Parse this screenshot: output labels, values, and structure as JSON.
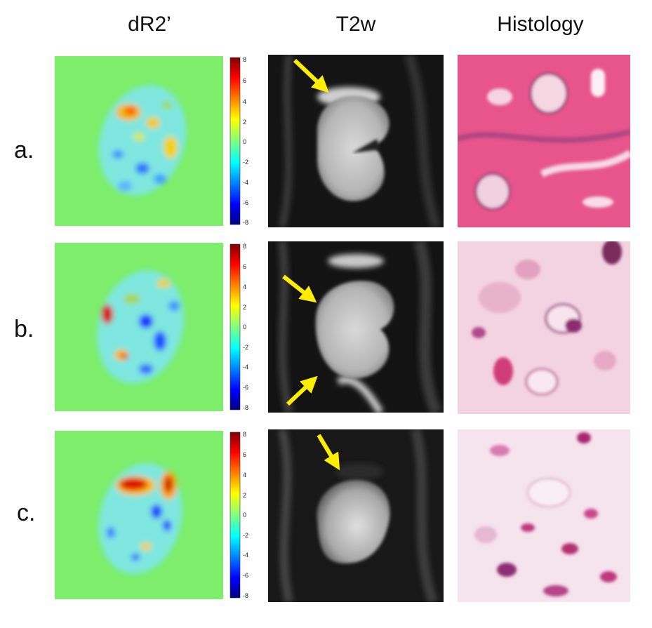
{
  "columns": [
    "dR2’",
    "T2w",
    "Histology"
  ],
  "rows": [
    {
      "label": "a."
    },
    {
      "label": "b."
    },
    {
      "label": "c."
    }
  ],
  "colorbar_ticks": [
    "8",
    "6",
    "4",
    "2",
    "0",
    "-2",
    "-4",
    "-6",
    "-8"
  ],
  "colors": {
    "background_map": "#7ded6b",
    "arrow": "#ffee00",
    "he_pink": "#e8558c",
    "he_purple": "#7a2f78"
  }
}
